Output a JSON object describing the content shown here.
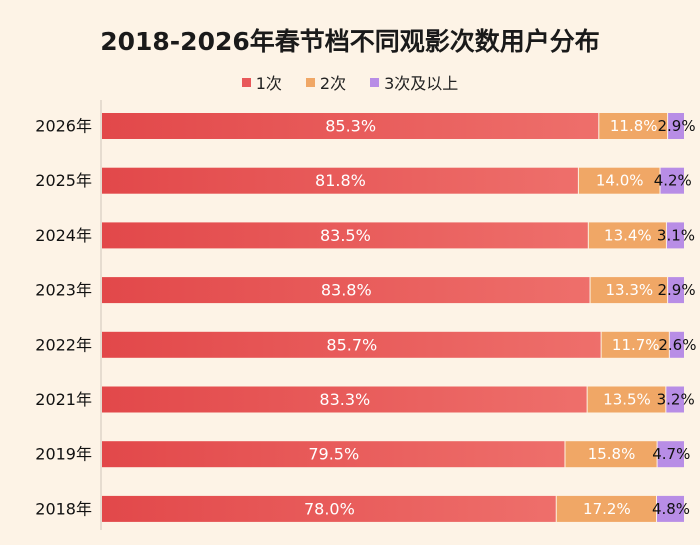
{
  "chart_data": {
    "type": "bar",
    "orientation": "horizontal",
    "stacked": true,
    "title": "2018-2026年春节档不同观影次数用户分布",
    "categories": [
      "2026年",
      "2025年",
      "2024年",
      "2023年",
      "2022年",
      "2021年",
      "2019年",
      "2018年"
    ],
    "series": [
      {
        "name": "1次",
        "color": "#e8585a",
        "values": [
          85.3,
          81.8,
          83.5,
          83.8,
          85.7,
          83.3,
          79.5,
          78.0
        ],
        "labels": [
          "85.3%",
          "81.8%",
          "83.5%",
          "83.8%",
          "85.7%",
          "83.3%",
          "79.5%",
          "78.0%"
        ]
      },
      {
        "name": "2次",
        "color": "#f0a766",
        "values": [
          11.8,
          14.0,
          13.4,
          13.3,
          11.7,
          13.5,
          15.8,
          17.2
        ],
        "labels": [
          "11.8%",
          "14.0%",
          "13.4%",
          "13.3%",
          "11.7%",
          "13.5%",
          "15.8%",
          "17.2%"
        ]
      },
      {
        "name": "3次及以上",
        "color": "#b88de6",
        "values": [
          2.9,
          4.2,
          3.1,
          2.9,
          2.6,
          3.2,
          4.7,
          4.8
        ],
        "labels": [
          "2.9%",
          "4.2%",
          "3.1%",
          "2.9%",
          "2.6%",
          "3.2%",
          "4.7%",
          "4.8%"
        ]
      }
    ],
    "legend_position": "top-center",
    "grid": false,
    "xlim": [
      0,
      100
    ]
  }
}
